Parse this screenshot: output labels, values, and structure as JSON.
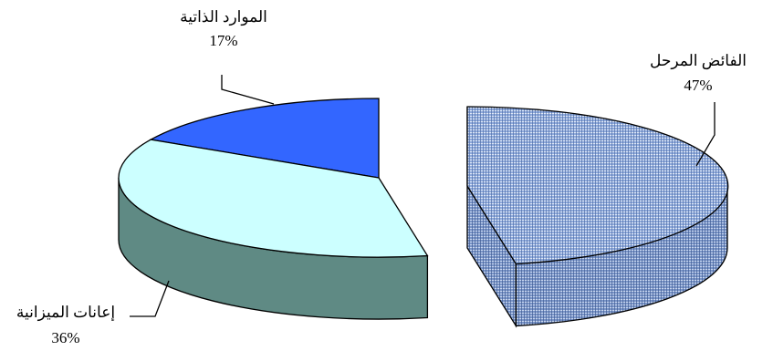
{
  "chart_data": {
    "type": "pie",
    "title": "",
    "slices": [
      {
        "label": "الموارد الذاتية",
        "value": 17,
        "value_label": "17%",
        "color": "#3366ff",
        "side_color": "#1f3a99",
        "exploded": false
      },
      {
        "label": "إعانات الميزانية",
        "value": 36,
        "value_label": "36%",
        "color": "#ccffff",
        "side_color": "#5f8a84",
        "exploded": false
      },
      {
        "label": "الفائض المرحل",
        "value": 47,
        "value_label": "47%",
        "color": "#8faadc",
        "side_color": "#7a95c8",
        "exploded": true,
        "pattern": "woven"
      }
    ],
    "legend": "none"
  }
}
